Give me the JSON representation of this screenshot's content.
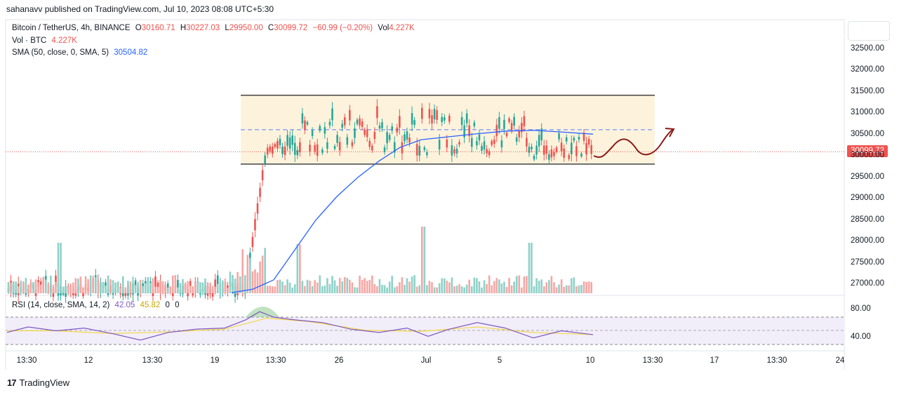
{
  "header": {
    "caption": "sahanavv published on TradingView.com, Jul 10, 2023 08:08 UTC+5:30"
  },
  "legend": {
    "symbol": "Bitcoin / TetherUS, 4h, BINANCE",
    "o_label": "O",
    "o": "30160.71",
    "h_label": "H",
    "h": "30227.03",
    "l_label": "L",
    "l": "29950.00",
    "c_label": "C",
    "c": "30099.72",
    "change": "−60.99 (−0.20%)",
    "vol_label": "Vol",
    "vol": "4.227K",
    "vol_line_label": "Vol · BTC",
    "vol_line_value": "4.227K",
    "sma_label": "SMA (50, close, 0, SMA, 5)",
    "sma_value": "30504.82"
  },
  "rsi_legend": {
    "label": "RSI (14, close, SMA, 14, 2)",
    "v1": "42.05",
    "v2": "45.82",
    "v3": "0",
    "v4": "0"
  },
  "price_tag": "30099.72",
  "brand": {
    "logo": "17",
    "name": "TradingView"
  },
  "colors": {
    "up": "#26a69a",
    "down": "#ef5350",
    "sma": "#2962ff",
    "rsi": "#7e57c2",
    "rsi_ma": "#f5d64a",
    "range_fill": "#fdf3dc",
    "arrow": "#8b1a1a"
  },
  "chart_data": {
    "type": "candlestick",
    "y_axis_ticks": [
      "32500.00",
      "32000.00",
      "31500.00",
      "31000.00",
      "30500.00",
      "30000.00",
      "29500.00",
      "29000.00",
      "28500.00",
      "28000.00",
      "27500.00",
      "27000.00"
    ],
    "y_tick_values": [
      32500,
      32000,
      31500,
      31000,
      30500,
      30000,
      29500,
      29000,
      28500,
      28000,
      27500,
      27000
    ],
    "rsi_ticks": [
      "80.00",
      "40.00"
    ],
    "rsi_tick_values": [
      80,
      40
    ],
    "x_axis_ticks": [
      "13:30",
      "12",
      "13:30",
      "19",
      "13:30",
      "26",
      "Jul",
      "5",
      "10",
      "13:30",
      "17",
      "13:30",
      "24"
    ],
    "range_box": {
      "top": 31420,
      "bottom": 29810,
      "mid": 30615
    },
    "sma_points": [
      [
        330,
        26800
      ],
      [
        360,
        26880
      ],
      [
        390,
        27100
      ],
      [
        420,
        27800
      ],
      [
        450,
        28500
      ],
      [
        480,
        29050
      ],
      [
        510,
        29500
      ],
      [
        540,
        29880
      ],
      [
        570,
        30200
      ],
      [
        600,
        30380
      ],
      [
        640,
        30450
      ],
      [
        680,
        30520
      ],
      [
        720,
        30580
      ],
      [
        760,
        30600
      ],
      [
        800,
        30560
      ],
      [
        845,
        30510
      ]
    ],
    "rsi_points": [
      [
        10,
        52
      ],
      [
        40,
        62
      ],
      [
        80,
        55
      ],
      [
        120,
        60
      ],
      [
        160,
        50
      ],
      [
        200,
        38
      ],
      [
        240,
        52
      ],
      [
        280,
        58
      ],
      [
        320,
        60
      ],
      [
        350,
        75
      ],
      [
        370,
        90
      ],
      [
        390,
        80
      ],
      [
        420,
        75
      ],
      [
        460,
        70
      ],
      [
        500,
        58
      ],
      [
        540,
        52
      ],
      [
        580,
        60
      ],
      [
        610,
        45
      ],
      [
        640,
        58
      ],
      [
        680,
        70
      ],
      [
        720,
        60
      ],
      [
        760,
        42
      ],
      [
        800,
        55
      ],
      [
        845,
        48
      ]
    ],
    "rsi_ma_points": [
      [
        10,
        55
      ],
      [
        80,
        55
      ],
      [
        160,
        50
      ],
      [
        240,
        53
      ],
      [
        320,
        58
      ],
      [
        380,
        78
      ],
      [
        440,
        72
      ],
      [
        520,
        56
      ],
      [
        600,
        54
      ],
      [
        680,
        62
      ],
      [
        760,
        52
      ],
      [
        845,
        48
      ]
    ]
  }
}
